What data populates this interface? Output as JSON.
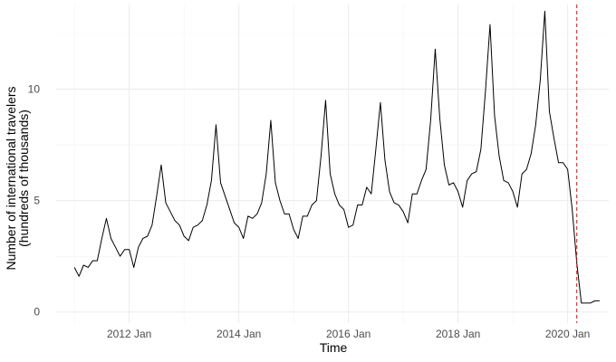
{
  "chart_data": {
    "type": "line",
    "title": "",
    "xlabel": "Time",
    "ylabel": [
      "Number of international travelers",
      "(hundreds of thousands)"
    ],
    "x_range": [
      "2010-09",
      "2020-10"
    ],
    "ylim": [
      -0.5,
      13.8
    ],
    "y_ticks": [
      0,
      5,
      10
    ],
    "y_tick_labels": [
      "0",
      "5",
      "10"
    ],
    "x_ticks": [
      "2012-01",
      "2014-01",
      "2016-01",
      "2018-01",
      "2020-01"
    ],
    "x_tick_labels": [
      "2012 Jan",
      "2014 Jan",
      "2016 Jan",
      "2018 Jan",
      "2020 Jan"
    ],
    "grid": true,
    "legend": "none",
    "series_color": "#000000",
    "vline": {
      "x": "2020-03",
      "color": "#ff0000",
      "style": "dashed"
    },
    "series": [
      {
        "x": [
          "2011-01",
          "2011-02",
          "2011-03",
          "2011-04",
          "2011-05",
          "2011-06",
          "2011-07",
          "2011-08",
          "2011-09",
          "2011-10",
          "2011-11",
          "2011-12",
          "2012-01",
          "2012-02",
          "2012-03",
          "2012-04",
          "2012-05",
          "2012-06",
          "2012-07",
          "2012-08",
          "2012-09",
          "2012-10",
          "2012-11",
          "2012-12",
          "2013-01",
          "2013-02",
          "2013-03",
          "2013-04",
          "2013-05",
          "2013-06",
          "2013-07",
          "2013-08",
          "2013-09",
          "2013-10",
          "2013-11",
          "2013-12",
          "2014-01",
          "2014-02",
          "2014-03",
          "2014-04",
          "2014-05",
          "2014-06",
          "2014-07",
          "2014-08",
          "2014-09",
          "2014-10",
          "2014-11",
          "2014-12",
          "2015-01",
          "2015-02",
          "2015-03",
          "2015-04",
          "2015-05",
          "2015-06",
          "2015-07",
          "2015-08",
          "2015-09",
          "2015-10",
          "2015-11",
          "2015-12",
          "2016-01",
          "2016-02",
          "2016-03",
          "2016-04",
          "2016-05",
          "2016-06",
          "2016-07",
          "2016-08",
          "2016-09",
          "2016-10",
          "2016-11",
          "2016-12",
          "2017-01",
          "2017-02",
          "2017-03",
          "2017-04",
          "2017-05",
          "2017-06",
          "2017-07",
          "2017-08",
          "2017-09",
          "2017-10",
          "2017-11",
          "2017-12",
          "2018-01",
          "2018-02",
          "2018-03",
          "2018-04",
          "2018-05",
          "2018-06",
          "2018-07",
          "2018-08",
          "2018-09",
          "2018-10",
          "2018-11",
          "2018-12",
          "2019-01",
          "2019-02",
          "2019-03",
          "2019-04",
          "2019-05",
          "2019-06",
          "2019-07",
          "2019-08",
          "2019-09",
          "2019-10",
          "2019-11",
          "2019-12",
          "2020-01",
          "2020-02",
          "2020-03",
          "2020-04",
          "2020-05",
          "2020-06",
          "2020-07",
          "2020-08"
        ],
        "values": [
          2.0,
          1.6,
          2.1,
          2.0,
          2.3,
          2.3,
          3.3,
          4.2,
          3.3,
          2.9,
          2.5,
          2.8,
          2.8,
          2.0,
          2.9,
          3.3,
          3.4,
          3.9,
          5.2,
          6.6,
          4.9,
          4.5,
          4.1,
          3.9,
          3.4,
          3.2,
          3.8,
          3.9,
          4.1,
          4.8,
          5.9,
          8.4,
          5.8,
          5.2,
          4.6,
          4.0,
          3.8,
          3.3,
          4.3,
          4.2,
          4.4,
          4.9,
          6.2,
          8.6,
          5.8,
          5.0,
          4.4,
          4.4,
          3.7,
          3.3,
          4.3,
          4.3,
          4.8,
          5.0,
          7.0,
          9.5,
          6.2,
          5.3,
          4.8,
          4.6,
          3.8,
          3.9,
          4.8,
          4.8,
          5.6,
          5.3,
          7.3,
          9.4,
          6.8,
          5.4,
          4.9,
          4.8,
          4.5,
          4.0,
          5.3,
          5.3,
          5.9,
          6.4,
          8.6,
          11.8,
          8.7,
          6.6,
          5.7,
          5.8,
          5.4,
          4.7,
          5.9,
          6.2,
          6.3,
          7.3,
          9.9,
          12.9,
          8.8,
          7.0,
          5.9,
          5.8,
          5.4,
          4.7,
          6.2,
          6.4,
          7.1,
          8.4,
          10.4,
          13.5,
          9.0,
          7.8,
          6.7,
          6.7,
          6.4,
          4.6,
          2.2,
          0.4,
          0.4,
          0.4,
          0.5,
          0.5
        ]
      }
    ]
  }
}
